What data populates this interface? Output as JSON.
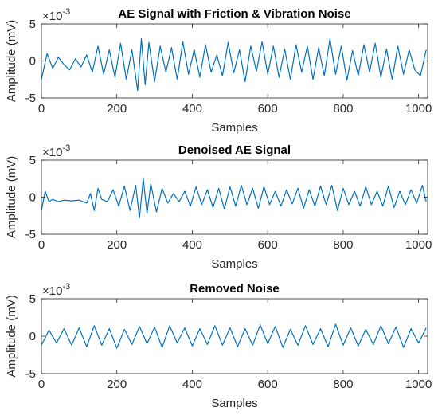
{
  "figure": {
    "background": "#ffffff",
    "line_color": "#0072bd",
    "axis_color": "#262626"
  },
  "chart_data": [
    {
      "type": "line",
      "title": "AE Signal with Friction & Vibration Noise",
      "xlabel": "Samples",
      "ylabel": "Amplitude (mV)",
      "y_exponent_base": "×10",
      "y_exponent_power": "-3",
      "xlim": [
        0,
        1024
      ],
      "ylim": [
        -5,
        5
      ],
      "xticks": [
        0,
        200,
        400,
        600,
        800,
        1000
      ],
      "yticks": [
        -5,
        0,
        5
      ],
      "series": [
        {
          "x": [
            0,
            15,
            30,
            45,
            60,
            75,
            90,
            105,
            120,
            135,
            150,
            165,
            180,
            195,
            210,
            225,
            240,
            255,
            265,
            275,
            285,
            300,
            315,
            330,
            345,
            360,
            375,
            390,
            405,
            420,
            435,
            450,
            465,
            480,
            495,
            510,
            525,
            540,
            555,
            570,
            585,
            600,
            615,
            630,
            645,
            660,
            675,
            690,
            705,
            720,
            735,
            750,
            765,
            780,
            795,
            810,
            825,
            840,
            855,
            870,
            885,
            900,
            915,
            930,
            945,
            960,
            975,
            990,
            1005,
            1020
          ],
          "values": [
            -2.5,
            1.0,
            -1.0,
            0.5,
            -0.5,
            -1.2,
            0.3,
            -0.8,
            0.8,
            -1.5,
            2.0,
            -1.8,
            1.5,
            -2.2,
            2.4,
            -2.5,
            1.5,
            -4.0,
            3.0,
            -3.2,
            2.5,
            -2.8,
            2.0,
            -1.5,
            1.8,
            -2.5,
            2.6,
            -1.8,
            1.5,
            -2.2,
            2.2,
            -1.5,
            0.8,
            -2.0,
            2.5,
            -1.6,
            1.5,
            -2.8,
            2.0,
            -1.4,
            2.6,
            -1.8,
            2.0,
            -2.2,
            1.6,
            -2.5,
            2.2,
            -1.5,
            2.0,
            -2.5,
            1.8,
            -2.0,
            3.0,
            -1.8,
            2.0,
            -2.6,
            1.4,
            -2.0,
            2.2,
            -1.5,
            2.4,
            -2.2,
            1.6,
            -2.5,
            2.0,
            -1.8,
            1.5,
            -1.2,
            -2.0,
            1.5
          ]
        }
      ]
    },
    {
      "type": "line",
      "title": "Denoised AE Signal",
      "xlabel": "Samples",
      "ylabel": "Amplitude (mV)",
      "y_exponent_base": "×10",
      "y_exponent_power": "-3",
      "xlim": [
        0,
        1024
      ],
      "ylim": [
        -5,
        5
      ],
      "xticks": [
        0,
        200,
        400,
        600,
        800,
        1000
      ],
      "yticks": [
        -5,
        0,
        5
      ],
      "series": [
        {
          "x": [
            0,
            10,
            20,
            30,
            45,
            60,
            80,
            100,
            120,
            130,
            140,
            150,
            160,
            175,
            190,
            205,
            220,
            235,
            250,
            260,
            270,
            280,
            290,
            305,
            320,
            335,
            350,
            365,
            380,
            395,
            410,
            425,
            440,
            455,
            470,
            485,
            500,
            515,
            530,
            545,
            560,
            575,
            590,
            605,
            620,
            635,
            650,
            665,
            680,
            695,
            710,
            725,
            740,
            755,
            770,
            785,
            800,
            815,
            830,
            845,
            860,
            875,
            890,
            905,
            920,
            935,
            950,
            965,
            980,
            995,
            1010,
            1020
          ],
          "values": [
            -1.8,
            0.8,
            -0.6,
            -0.3,
            -0.6,
            -0.4,
            -0.5,
            -0.4,
            -0.8,
            0.5,
            -1.8,
            1.2,
            -0.3,
            -0.6,
            1.0,
            -1.2,
            1.5,
            -1.8,
            1.6,
            -2.8,
            2.5,
            -2.2,
            1.8,
            -2.0,
            1.2,
            -0.8,
            0.5,
            -0.6,
            0.8,
            -1.2,
            1.4,
            -1.0,
            1.0,
            -1.4,
            1.2,
            -1.6,
            1.4,
            -1.2,
            1.6,
            -1.0,
            1.2,
            -1.5,
            1.4,
            -1.0,
            0.8,
            -1.2,
            1.0,
            -0.9,
            1.2,
            -1.5,
            1.0,
            -1.2,
            1.5,
            -1.0,
            1.6,
            -1.8,
            1.2,
            -1.0,
            0.8,
            -1.2,
            1.4,
            -1.0,
            0.8,
            -1.2,
            1.5,
            -1.4,
            0.8,
            -1.0,
            1.0,
            -0.8,
            1.6,
            -0.6
          ]
        }
      ]
    },
    {
      "type": "line",
      "title": "Removed Noise",
      "xlabel": "Samples",
      "ylabel": "Amplitude (mV)",
      "y_exponent_base": "×10",
      "y_exponent_power": "-3",
      "xlim": [
        0,
        1024
      ],
      "ylim": [
        -5,
        5
      ],
      "xticks": [
        0,
        200,
        400,
        600,
        800,
        1000
      ],
      "yticks": [
        -5,
        0,
        5
      ],
      "series": [
        {
          "x": [
            0,
            20,
            40,
            60,
            80,
            100,
            120,
            140,
            160,
            180,
            200,
            220,
            240,
            260,
            280,
            300,
            320,
            340,
            360,
            380,
            400,
            420,
            440,
            460,
            480,
            500,
            520,
            540,
            560,
            580,
            600,
            620,
            640,
            660,
            680,
            700,
            720,
            740,
            760,
            780,
            800,
            820,
            840,
            860,
            880,
            900,
            920,
            940,
            960,
            980,
            1000,
            1020
          ],
          "values": [
            -1.2,
            0.8,
            -0.9,
            1.0,
            -1.2,
            1.1,
            -1.4,
            1.4,
            -1.2,
            1.0,
            -1.6,
            0.9,
            -1.1,
            1.3,
            -1.0,
            1.2,
            -1.5,
            1.4,
            -0.9,
            1.1,
            -1.3,
            1.0,
            -1.1,
            1.4,
            -1.2,
            1.1,
            -1.4,
            1.0,
            -1.2,
            1.5,
            -1.0,
            1.3,
            -1.5,
            0.9,
            -1.2,
            1.4,
            -1.1,
            1.0,
            -1.4,
            1.6,
            -1.2,
            1.1,
            -1.3,
            0.9,
            -1.1,
            1.4,
            -1.0,
            1.2,
            -1.5,
            1.0,
            -0.9,
            1.1
          ]
        }
      ]
    }
  ]
}
